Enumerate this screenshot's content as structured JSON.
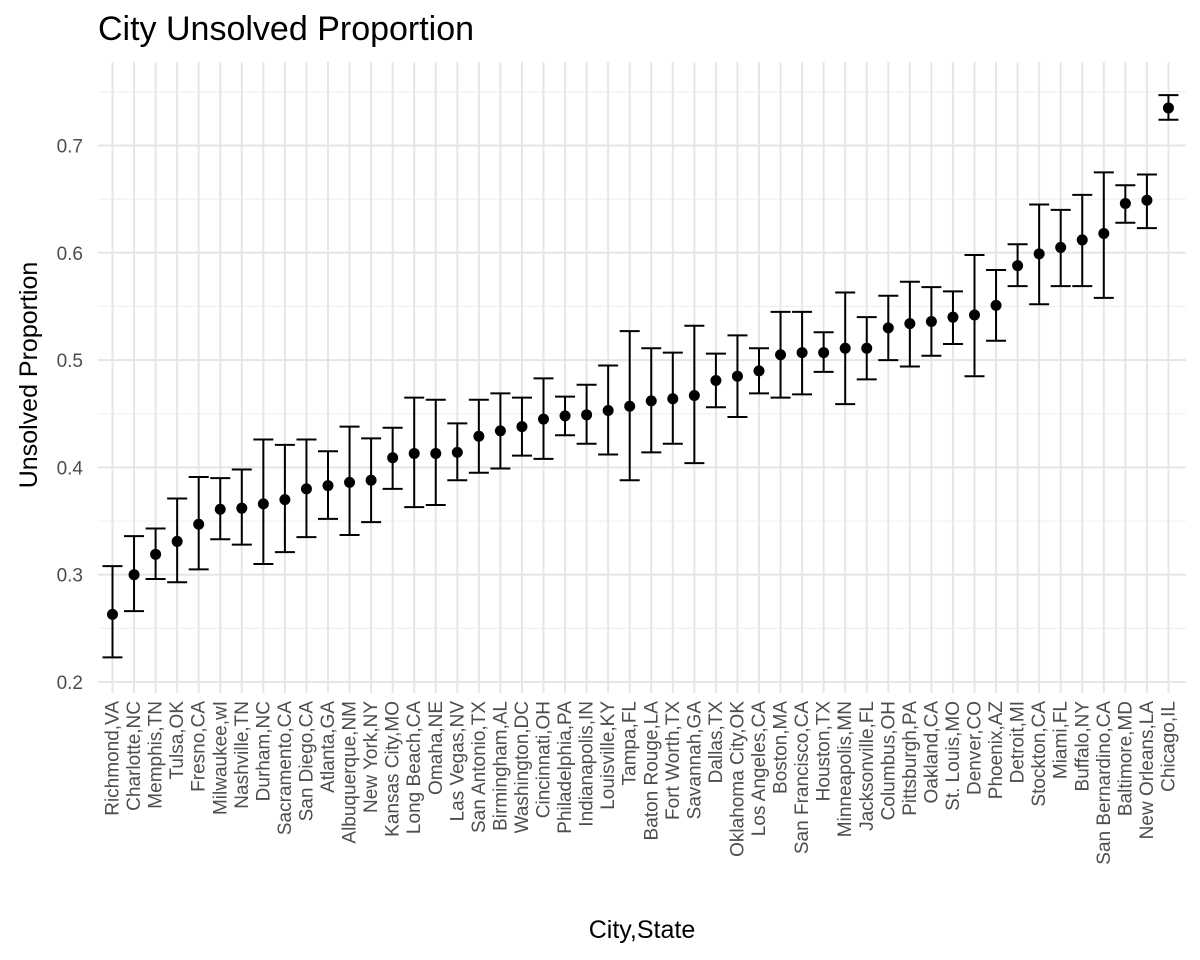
{
  "chart_data": {
    "type": "scatter",
    "title": "City Unsolved Proportion",
    "xlabel": "City,State",
    "ylabel": "Unsolved Proportion",
    "ylim": [
      0.2,
      0.75
    ],
    "yticks": [
      0.2,
      0.3,
      0.4,
      0.5,
      0.6,
      0.7
    ],
    "ytick_labels": [
      "0.2",
      "0.3",
      "0.4",
      "0.5",
      "0.6",
      "0.7"
    ],
    "grid": true,
    "error_bars": true,
    "categories": [
      "Richmond,VA",
      "Charlotte,NC",
      "Memphis,TN",
      "Tulsa,OK",
      "Fresno,CA",
      "Milwaukee,wI",
      "Nashville,TN",
      "Durham,NC",
      "Sacramento,CA",
      "San Diego,CA",
      "Atlanta,GA",
      "Albuquerque,NM",
      "New York,NY",
      "Kansas City,MO",
      "Long Beach,CA",
      "Omaha,NE",
      "Las Vegas,NV",
      "San Antonio,TX",
      "Birmingham,AL",
      "Washington,DC",
      "Cincinnati,OH",
      "Philadelphia,PA",
      "Indianapolis,IN",
      "Louisville,KY",
      "Tampa,FL",
      "Baton Rouge,LA",
      "Fort Worth,TX",
      "Savannah,GA",
      "Dallas,TX",
      "Oklahoma City,OK",
      "Los Angeles,CA",
      "Boston,MA",
      "San Francisco,CA",
      "Houston,TX",
      "Minneapolis,MN",
      "Jacksonville,FL",
      "Columbus,OH",
      "Pittsburgh,PA",
      "Oakland,CA",
      "St. Louis,MO",
      "Denver,CO",
      "Phoenix,AZ",
      "Detroit,MI",
      "Stockton,CA",
      "Miami,FL",
      "Buffalo,NY",
      "San Bernardino,CA",
      "Baltimore,MD",
      "New Orleans,LA",
      "Chicago,IL"
    ],
    "estimate": [
      0.263,
      0.3,
      0.319,
      0.331,
      0.347,
      0.361,
      0.362,
      0.366,
      0.37,
      0.38,
      0.383,
      0.386,
      0.388,
      0.409,
      0.413,
      0.413,
      0.414,
      0.429,
      0.434,
      0.438,
      0.445,
      0.448,
      0.449,
      0.453,
      0.457,
      0.462,
      0.464,
      0.467,
      0.481,
      0.485,
      0.49,
      0.505,
      0.507,
      0.507,
      0.511,
      0.511,
      0.53,
      0.534,
      0.536,
      0.54,
      0.542,
      0.551,
      0.588,
      0.599,
      0.605,
      0.612,
      0.618,
      0.646,
      0.649,
      0.735
    ],
    "lower": [
      0.223,
      0.266,
      0.296,
      0.293,
      0.305,
      0.333,
      0.328,
      0.31,
      0.321,
      0.335,
      0.352,
      0.337,
      0.349,
      0.38,
      0.363,
      0.365,
      0.388,
      0.395,
      0.399,
      0.411,
      0.408,
      0.43,
      0.422,
      0.412,
      0.388,
      0.414,
      0.422,
      0.404,
      0.456,
      0.447,
      0.469,
      0.465,
      0.468,
      0.489,
      0.459,
      0.482,
      0.5,
      0.494,
      0.504,
      0.515,
      0.485,
      0.518,
      0.569,
      0.552,
      0.569,
      0.569,
      0.558,
      0.628,
      0.623,
      0.724
    ],
    "upper": [
      0.308,
      0.336,
      0.343,
      0.371,
      0.391,
      0.39,
      0.398,
      0.426,
      0.421,
      0.426,
      0.415,
      0.438,
      0.427,
      0.437,
      0.465,
      0.463,
      0.441,
      0.463,
      0.469,
      0.465,
      0.483,
      0.466,
      0.477,
      0.495,
      0.527,
      0.511,
      0.507,
      0.532,
      0.506,
      0.523,
      0.511,
      0.545,
      0.545,
      0.526,
      0.563,
      0.54,
      0.56,
      0.573,
      0.568,
      0.564,
      0.598,
      0.584,
      0.608,
      0.645,
      0.64,
      0.654,
      0.675,
      0.663,
      0.673,
      0.747
    ]
  }
}
